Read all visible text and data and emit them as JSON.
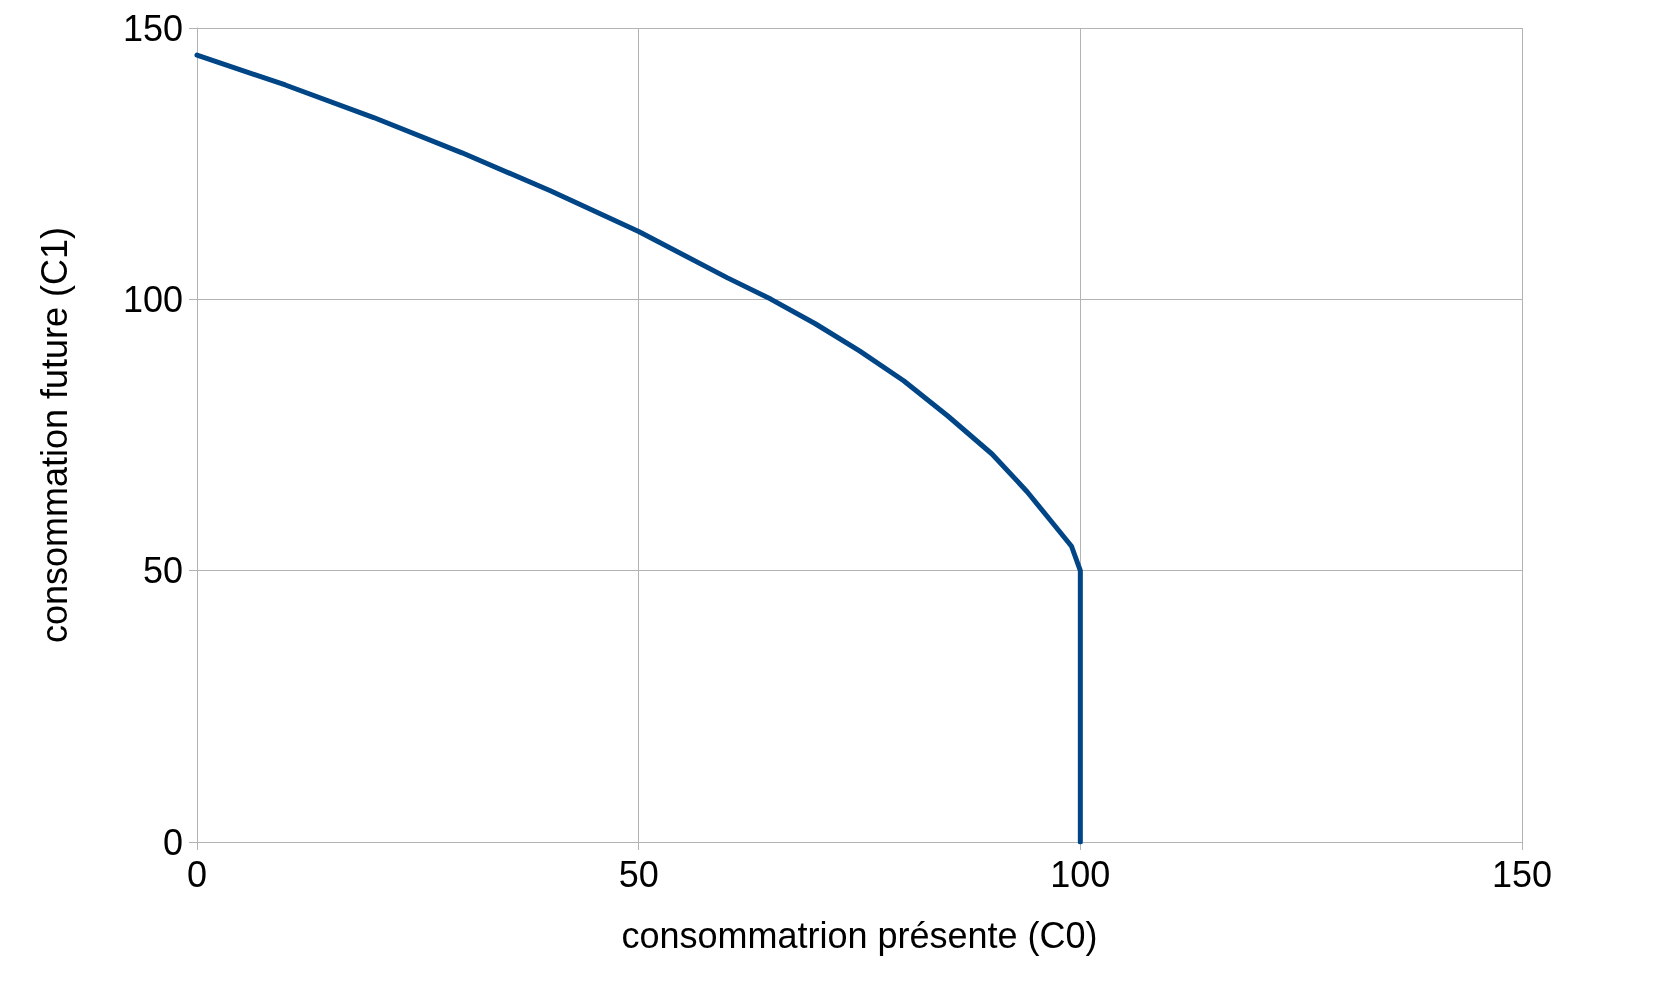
{
  "chart_data": {
    "type": "line",
    "xlabel": "consommatrion présente (C0)",
    "ylabel": "consommation future (C1)",
    "series": [
      {
        "color": "#004586",
        "x": [
          0,
          10,
          20,
          30,
          40,
          50,
          60,
          65,
          70,
          75,
          80,
          85,
          90,
          94,
          97,
          99,
          100,
          100
        ],
        "values": [
          145,
          139.5,
          133.5,
          127,
          120,
          112.5,
          104,
          100,
          95.5,
          90.5,
          85,
          78.5,
          71.5,
          64.5,
          58.5,
          54.5,
          50,
          0
        ]
      }
    ],
    "xlim": [
      0,
      150
    ],
    "xticks": [
      0,
      50,
      100,
      150
    ],
    "ylim": [
      0,
      150
    ],
    "yticks": [
      0,
      50,
      100,
      150
    ],
    "grid": true,
    "marker": "none",
    "line_style": "solid"
  }
}
